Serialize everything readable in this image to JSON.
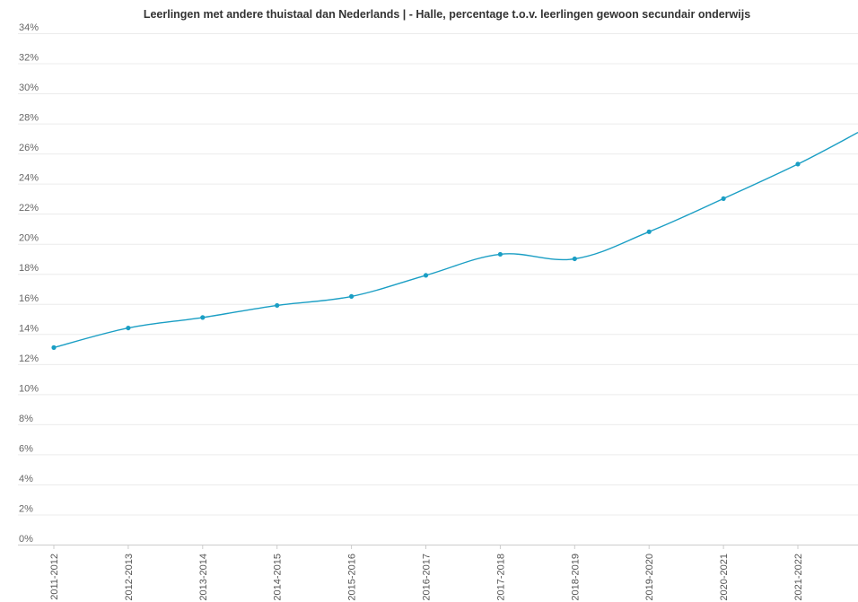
{
  "chart_data": {
    "type": "line",
    "title": "Leerlingen met andere thuistaal dan Nederlands | - Halle, percentage t.o.v. leerlingen gewoon secundair onderwijs",
    "xlabel": "",
    "ylabel": "",
    "categories": [
      "2011-2012",
      "2012-2013",
      "2013-2014",
      "2014-2015",
      "2015-2016",
      "2016-2017",
      "2017-2018",
      "2018-2019",
      "2019-2020",
      "2020-2021",
      "2021-2022"
    ],
    "series": [
      {
        "values": [
          13.1,
          14.4,
          15.1,
          15.9,
          16.5,
          17.9,
          19.3,
          19.0,
          20.8,
          23.0,
          25.3
        ],
        "color": "#1a9ec4"
      }
    ],
    "extension_value": 27.4,
    "ylim": [
      0,
      34
    ],
    "yticks": [
      0,
      2,
      4,
      6,
      8,
      10,
      12,
      14,
      16,
      18,
      20,
      22,
      24,
      26,
      28,
      30,
      32,
      34
    ],
    "ytick_labels": [
      "0%",
      "2%",
      "4%",
      "6%",
      "8%",
      "10%",
      "12%",
      "14%",
      "16%",
      "18%",
      "20%",
      "22%",
      "24%",
      "26%",
      "28%",
      "30%",
      "32%",
      "34%"
    ],
    "grid": true,
    "legend": "none"
  }
}
